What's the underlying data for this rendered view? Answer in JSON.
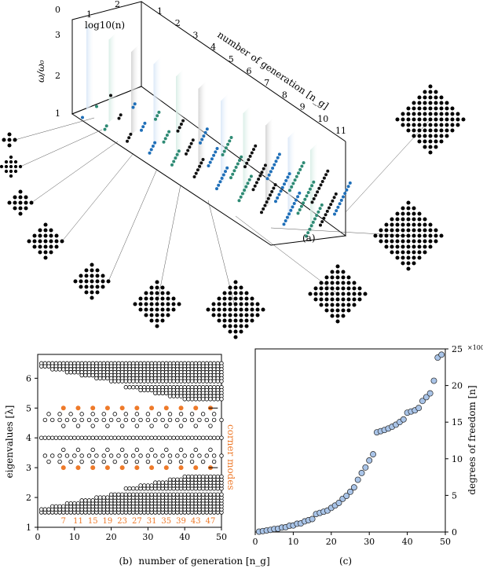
{
  "chart_data": [
    {
      "panel": "(a)",
      "type": "scatter",
      "xlabel": "number of generation [n_g]",
      "ylabel": "ω/ω₀",
      "zlabel": "log10(n)",
      "x_ticks": [
        "1",
        "2",
        "3",
        "4",
        "5",
        "6",
        "7",
        "8",
        "9",
        "10",
        "11"
      ],
      "y_ticks": [
        "1",
        "2",
        "3"
      ],
      "z_ticks": [
        "0",
        "1",
        "2"
      ],
      "series_colors": [
        "#111111",
        "#1f6fb8",
        "#2e8a74"
      ],
      "note": "Eigenfrequency spectra of diamond-shaped lattices for generations 1–11 with inset lattice drawings."
    },
    {
      "panel": "(b)",
      "type": "scatter",
      "xlabel": "number of generation [n_g]",
      "ylabel": "eigenvalues [λ]",
      "xlim": [
        0,
        50
      ],
      "ylim": [
        1,
        6.8
      ],
      "x_ticks": [
        "0",
        "10",
        "20",
        "30",
        "40",
        "50"
      ],
      "y_ticks": [
        "1",
        "2",
        "3",
        "4",
        "5",
        "6"
      ],
      "corner_mode_generations": [
        "7",
        "11",
        "15",
        "19",
        "23",
        "27",
        "31",
        "35",
        "39",
        "43",
        "47"
      ],
      "corner_mode_eigenvalues": [
        3,
        5
      ],
      "annotation": "corner modes",
      "highlight_color": "#ee7a2a"
    },
    {
      "panel": "(c)",
      "type": "scatter",
      "xlabel": "number of generation [n_g]",
      "ylabel": "degrees of freedom [n]",
      "y_multiplier": "×100",
      "xlim": [
        0,
        50
      ],
      "ylim": [
        0,
        25
      ],
      "x_ticks": [
        "0",
        "10",
        "20",
        "30",
        "40",
        "50"
      ],
      "y_ticks": [
        "0",
        "5",
        "10",
        "15",
        "20",
        "25"
      ],
      "point_color": "#a9c4e8",
      "x": [
        1,
        2,
        3,
        4,
        5,
        6,
        7,
        8,
        9,
        10,
        11,
        12,
        13,
        14,
        15,
        16,
        17,
        18,
        19,
        20,
        21,
        22,
        23,
        24,
        25,
        26,
        27,
        28,
        29,
        30,
        31,
        32,
        33,
        34,
        35,
        36,
        37,
        38,
        39,
        40,
        41,
        42,
        43,
        44,
        45,
        46,
        47,
        48,
        49
      ],
      "y": [
        0.05,
        0.13,
        0.21,
        0.29,
        0.41,
        0.45,
        0.61,
        0.65,
        0.85,
        0.89,
        1.13,
        1.17,
        1.45,
        1.61,
        1.77,
        2.45,
        2.61,
        2.77,
        2.93,
        3.29,
        3.61,
        3.97,
        4.53,
        4.93,
        5.49,
        6.09,
        7.13,
        8.05,
        8.81,
        9.77,
        10.61,
        13.61,
        13.77,
        13.93,
        14.13,
        14.37,
        14.65,
        15.01,
        15.37,
        16.29,
        16.45,
        16.61,
        16.93,
        17.89,
        18.41,
        18.93,
        20.65,
        23.81,
        24.21
      ]
    }
  ],
  "panel_labels": {
    "a": "(a)",
    "b": "(b)",
    "c": "(c)"
  }
}
